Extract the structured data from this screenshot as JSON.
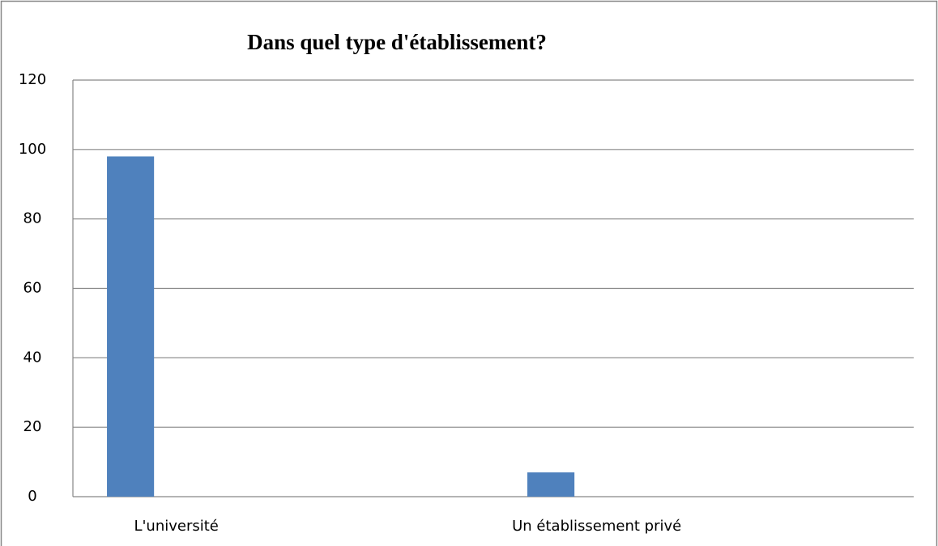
{
  "chart_data": {
    "type": "bar",
    "title": "Dans quel type d'établissement?",
    "categories": [
      "L'université",
      "Un établissement privé"
    ],
    "values": [
      98,
      7
    ],
    "color": "#4f81bd",
    "ylim": [
      0,
      120
    ],
    "yticks": [
      0,
      20,
      40,
      60,
      80,
      100,
      120
    ],
    "grid": true
  }
}
